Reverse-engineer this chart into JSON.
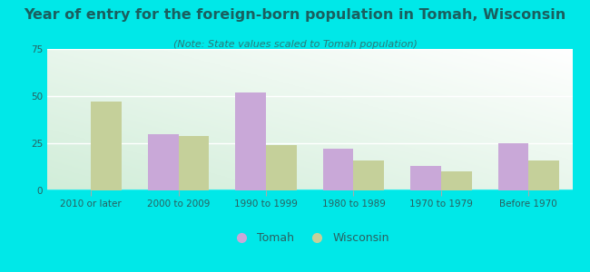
{
  "title": "Year of entry for the foreign-born population in Tomah, Wisconsin",
  "subtitle": "(Note: State values scaled to Tomah population)",
  "categories": [
    "2010 or later",
    "2000 to 2009",
    "1990 to 1999",
    "1980 to 1989",
    "1970 to 1979",
    "Before 1970"
  ],
  "tomah_values": [
    0,
    30,
    52,
    22,
    13,
    25
  ],
  "wisconsin_values": [
    47,
    29,
    24,
    16,
    10,
    16
  ],
  "tomah_color": "#c9a8d8",
  "wisconsin_color": "#c5d09a",
  "background_outer": "#00e8e8",
  "ylim": [
    0,
    75
  ],
  "yticks": [
    0,
    25,
    50,
    75
  ],
  "bar_width": 0.35,
  "title_fontsize": 11.5,
  "subtitle_fontsize": 8,
  "tick_fontsize": 7.5,
  "legend_fontsize": 9,
  "title_color": "#1a5f5f",
  "subtitle_color": "#2a7a7a",
  "tick_color": "#2a6060"
}
